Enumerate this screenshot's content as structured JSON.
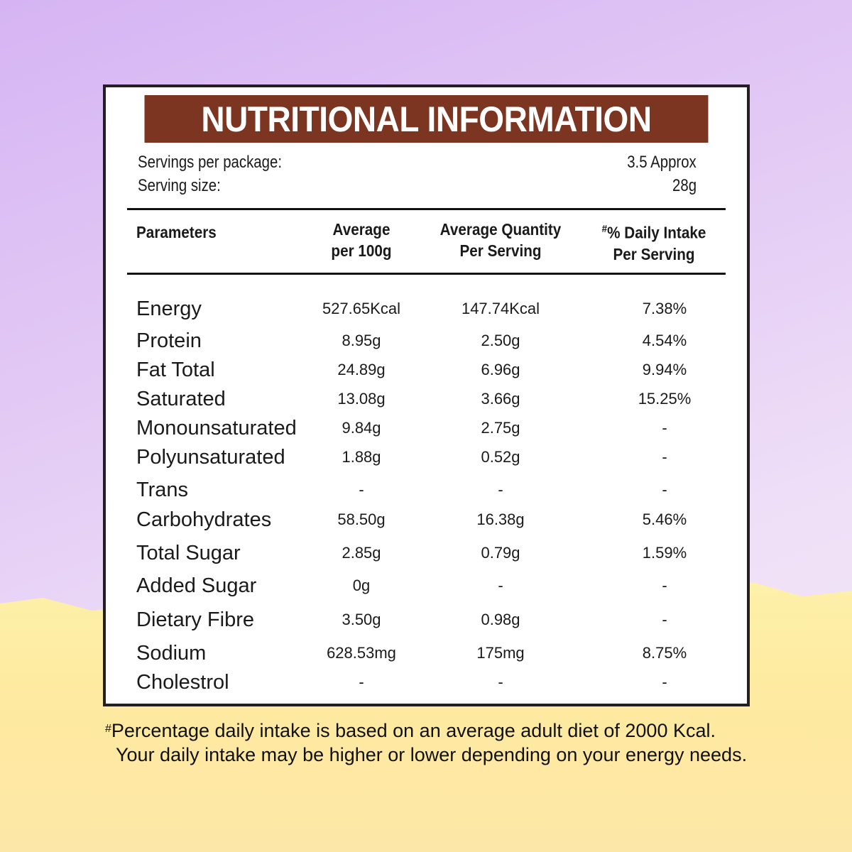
{
  "title": "NUTRITIONAL INFORMATION",
  "servings": {
    "per_package_label": "Servings per package:",
    "per_package_value": "3.5 Approx",
    "size_label": "Serving size:",
    "size_value": "28g"
  },
  "columns": {
    "param": "Parameters",
    "avg100_l1": "Average",
    "avg100_l2": "per 100g",
    "serv_l1": "Average Quantity",
    "serv_l2": "Per Serving",
    "di_mark": "#",
    "di_l1": "% Daily Intake",
    "di_l2": "Per Serving"
  },
  "rows": [
    {
      "name": "Energy",
      "per100": "527.65Kcal",
      "serving": "147.74Kcal",
      "daily": "7.38%"
    },
    {
      "name": "Protein",
      "per100": "8.95g",
      "serving": "2.50g",
      "daily": "4.54%"
    },
    {
      "name": "Fat Total",
      "per100": "24.89g",
      "serving": "6.96g",
      "daily": "9.94%"
    },
    {
      "name": "Saturated",
      "per100": "13.08g",
      "serving": "3.66g",
      "daily": "15.25%"
    },
    {
      "name": "Monounsaturated",
      "per100": "9.84g",
      "serving": "2.75g",
      "daily": "-"
    },
    {
      "name": "Polyunsaturated",
      "per100": "1.88g",
      "serving": "0.52g",
      "daily": "-"
    },
    {
      "name": "Trans",
      "per100": "-",
      "serving": "-",
      "daily": "-"
    },
    {
      "name": "Carbohydrates",
      "per100": "58.50g",
      "serving": "16.38g",
      "daily": "5.46%"
    },
    {
      "name": "Total Sugar",
      "per100": "2.85g",
      "serving": "0.79g",
      "daily": "1.59%"
    },
    {
      "name": "Added Sugar",
      "per100": "0g",
      "serving": "-",
      "daily": "-"
    },
    {
      "name": "Dietary Fibre",
      "per100": "3.50g",
      "serving": "0.98g",
      "daily": "-"
    },
    {
      "name": "Sodium",
      "per100": "628.53mg",
      "serving": "175mg",
      "daily": "8.75%"
    },
    {
      "name": "Cholestrol",
      "per100": "-",
      "serving": "-",
      "daily": "-"
    }
  ],
  "footnote": {
    "mark": "#",
    "line1": "Percentage daily intake is based on an average adult diet of 2000 Kcal.",
    "line2": "Your daily intake may be higher or lower depending on your energy needs."
  },
  "colors": {
    "band": "#7b3520",
    "purple": "#d6b4f3",
    "yellow": "#fde9a0"
  }
}
